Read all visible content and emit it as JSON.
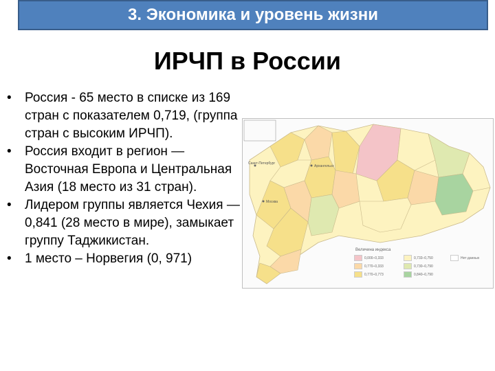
{
  "header": {
    "title": "3. Экономика и уровень жизни"
  },
  "slide": {
    "title": "ИРЧП в России"
  },
  "bullets": [
    {
      "text": "Россия - 65 место в списке из 169 стран с показателем 0,719, (группа стран с высоким ИРЧП)."
    },
    {
      "text": "Россия входит в регион — Восточная Европа и Центральная Азия (18 место из 31 стран)."
    },
    {
      "text": "Лидером группы является Чехия — 0,841 (28 место в мире), замыкает группу Таджикистан."
    },
    {
      "text": "1 место – Норвегия  (0, 971)"
    }
  ],
  "map": {
    "legend_title": "Величина индекса",
    "legend": [
      {
        "label": "0,000–0,333",
        "color": "#f4c4c8"
      },
      {
        "label": "0,770–0,333",
        "color": "#fbd9a8"
      },
      {
        "label": "0,770–0,773",
        "color": "#f6e08a"
      },
      {
        "label": "0,733–0,750",
        "color": "#fdf3c0"
      },
      {
        "label": "0,730–0,790",
        "color": "#dfe9b0"
      },
      {
        "label": "0,840–0,790",
        "color": "#a8d4a0"
      },
      {
        "label": "Нет данных",
        "color": "#ffffff"
      }
    ],
    "cities": [
      "Санкт-Петербург",
      "Москва",
      "Архангельск"
    ]
  }
}
